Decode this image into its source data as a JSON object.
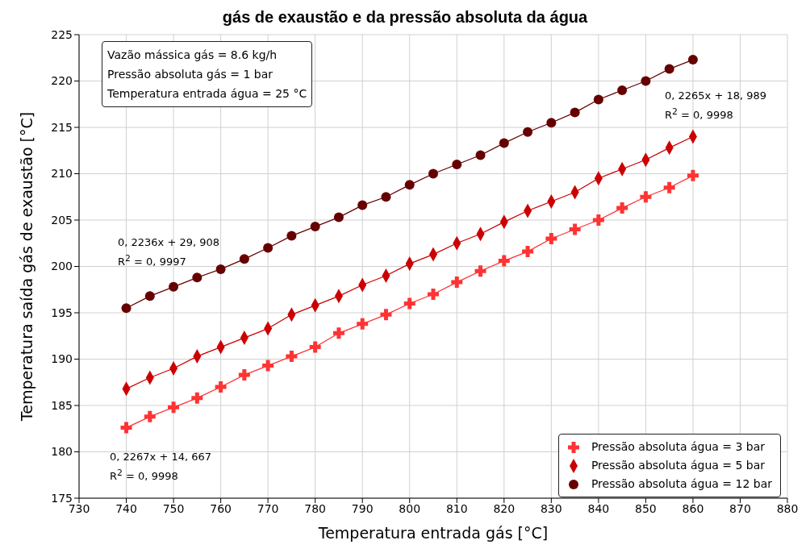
{
  "chart_data": {
    "type": "line",
    "title": "gás de exaustão e da pressão absoluta da água",
    "xlabel": "Temperatura entrada gás [°C]",
    "ylabel": "Temperatura saída gás de exaustão [°C]",
    "x": [
      740,
      745,
      750,
      755,
      760,
      765,
      770,
      775,
      780,
      785,
      790,
      795,
      800,
      805,
      810,
      815,
      820,
      825,
      830,
      835,
      840,
      845,
      850,
      855,
      860
    ],
    "series": [
      {
        "name": "Pressão absoluta água = 3 bar",
        "color": "#ff3333",
        "marker": "cross",
        "values": [
          182.6,
          183.8,
          184.8,
          185.8,
          187.0,
          188.3,
          189.3,
          190.3,
          191.3,
          192.8,
          193.8,
          194.8,
          196.0,
          197.0,
          198.3,
          199.5,
          200.6,
          201.6,
          203.0,
          204.0,
          205.0,
          206.3,
          207.5,
          208.5,
          209.8
        ]
      },
      {
        "name": "Pressão absoluta água = 5 bar",
        "color": "#cc0000",
        "marker": "diamond",
        "values": [
          186.8,
          188.0,
          189.0,
          190.3,
          191.3,
          192.3,
          193.3,
          194.8,
          195.8,
          196.8,
          198.0,
          199.0,
          200.3,
          201.3,
          202.5,
          203.5,
          204.8,
          206.0,
          207.0,
          208.0,
          209.5,
          210.5,
          211.5,
          212.8,
          214.0
        ]
      },
      {
        "name": "Pressão absoluta água = 12 bar",
        "color": "#660000",
        "marker": "circle",
        "values": [
          195.5,
          196.8,
          197.8,
          198.8,
          199.7,
          200.8,
          202.0,
          203.3,
          204.3,
          205.3,
          206.6,
          207.5,
          208.8,
          210.0,
          211.0,
          212.0,
          213.3,
          214.5,
          215.5,
          216.6,
          218.0,
          219.0,
          220.0,
          221.3,
          222.3
        ]
      }
    ],
    "xlim": [
      730,
      880
    ],
    "xticks": [
      730,
      740,
      750,
      760,
      770,
      780,
      790,
      800,
      810,
      820,
      830,
      840,
      850,
      860,
      870,
      880
    ],
    "ylim": [
      175,
      225
    ],
    "yticks": [
      175,
      180,
      185,
      190,
      195,
      200,
      205,
      210,
      215,
      220,
      225
    ],
    "grid": true,
    "legend": "bottom right",
    "line_style": "solid",
    "annotations": [
      "Vazão mássica gás = 8.6 kg/h",
      "Pressão absoluta gás = 1 bar",
      "Temperatura entrada água = 25 °C",
      "0, 2236x + 29, 908\nR$^{2}$ = 0, 9997",
      "0, 2265x + 18, 989\nR$^{2}$ = 0, 9998",
      "0, 2267x + 14, 667\nR$^{2}$ = 0, 9998"
    ]
  }
}
